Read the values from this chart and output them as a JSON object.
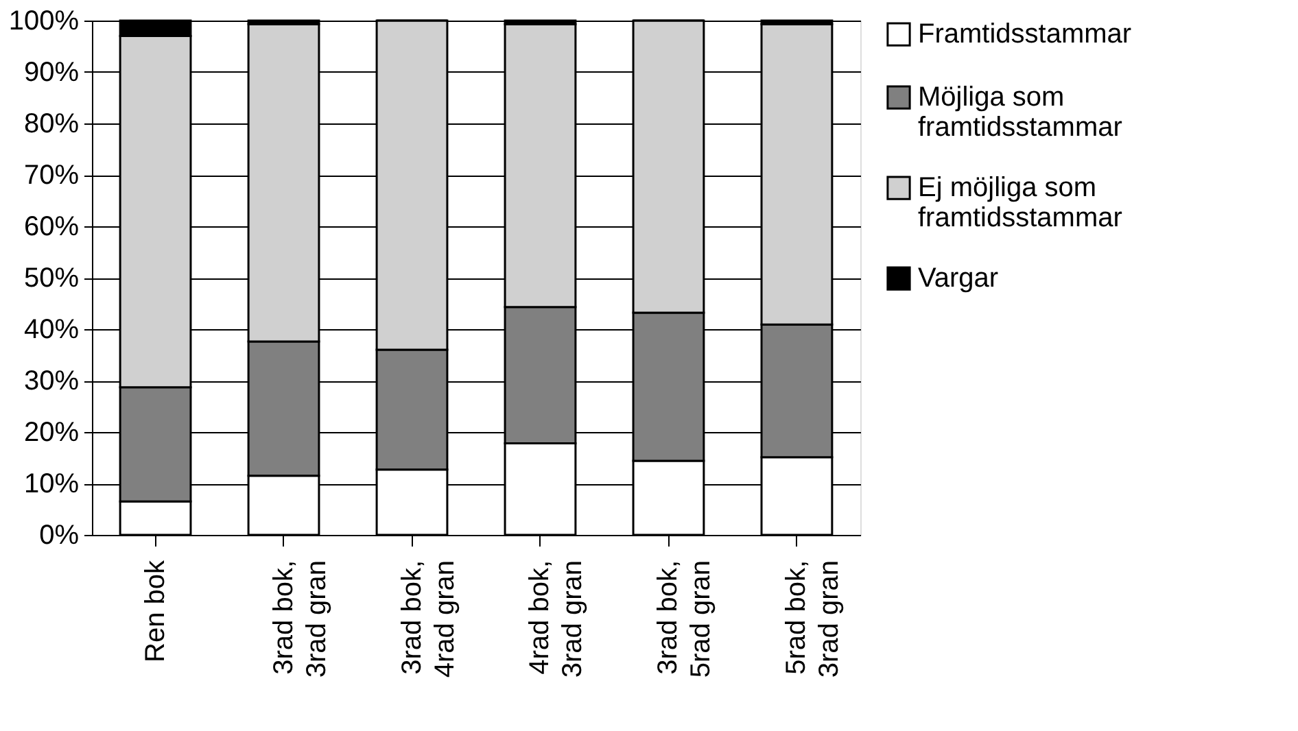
{
  "chart_data": {
    "type": "bar",
    "stacked": true,
    "categories": [
      "Ren bok",
      "3rad bok,\n3rad gran",
      "3rad bok,\n4rad gran",
      "4rad bok,\n3rad gran",
      "3rad bok,\n5rad gran",
      "5rad bok,\n3rad gran"
    ],
    "series": [
      {
        "name": "Framtidsstammar",
        "color": "#ffffff",
        "values": [
          6.5,
          11.5,
          12.7,
          17.8,
          14.4,
          15.1
        ]
      },
      {
        "name": "Möjliga som framtidsstammar",
        "color": "#808080",
        "values": [
          22.2,
          26.1,
          23.3,
          26.5,
          28.8,
          25.8
        ]
      },
      {
        "name": "Ej möjliga som framtidsstammar",
        "color": "#d0d0d0",
        "values": [
          68.3,
          61.7,
          64.0,
          55.0,
          56.8,
          58.4
        ]
      },
      {
        "name": "Vargar",
        "color": "#000000",
        "values": [
          3.0,
          0.7,
          0.0,
          0.7,
          0.0,
          0.7
        ]
      }
    ],
    "ylim": [
      0,
      100
    ],
    "yticks": [
      {
        "value": 0,
        "label": "0%"
      },
      {
        "value": 10,
        "label": "10%"
      },
      {
        "value": 20,
        "label": "20%"
      },
      {
        "value": 30,
        "label": "30%"
      },
      {
        "value": 40,
        "label": "40%"
      },
      {
        "value": 50,
        "label": "50%"
      },
      {
        "value": 60,
        "label": "60%"
      },
      {
        "value": 70,
        "label": "70%"
      },
      {
        "value": 80,
        "label": "80%"
      },
      {
        "value": 90,
        "label": "90%"
      },
      {
        "value": 100,
        "label": "100%"
      }
    ],
    "grid": "y",
    "legend": "right"
  }
}
